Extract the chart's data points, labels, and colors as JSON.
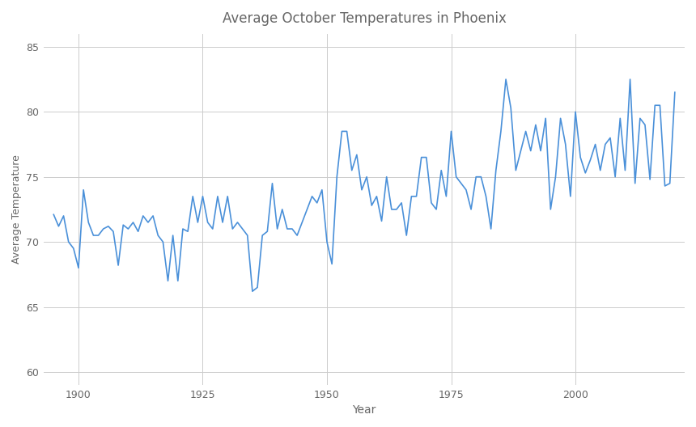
{
  "title": "Average October Temperatures in Phoenix",
  "xlabel": "Year",
  "ylabel": "Average Temperature",
  "line_color": "#4a90d9",
  "bg_color": "#ffffff",
  "grid_color": "#cccccc",
  "ylim": [
    59,
    86
  ],
  "yticks": [
    60,
    65,
    70,
    75,
    80,
    85
  ],
  "xlim": [
    1893,
    2022
  ],
  "xtick_interval": 25,
  "years": [
    1895,
    1896,
    1897,
    1898,
    1899,
    1900,
    1901,
    1902,
    1903,
    1904,
    1905,
    1906,
    1907,
    1908,
    1909,
    1910,
    1911,
    1912,
    1913,
    1914,
    1915,
    1916,
    1917,
    1918,
    1919,
    1920,
    1921,
    1922,
    1923,
    1924,
    1925,
    1926,
    1927,
    1928,
    1929,
    1930,
    1931,
    1932,
    1933,
    1934,
    1935,
    1936,
    1937,
    1938,
    1939,
    1940,
    1941,
    1942,
    1943,
    1944,
    1945,
    1946,
    1947,
    1948,
    1949,
    1950,
    1951,
    1952,
    1953,
    1954,
    1955,
    1956,
    1957,
    1958,
    1959,
    1960,
    1961,
    1962,
    1963,
    1964,
    1965,
    1966,
    1967,
    1968,
    1969,
    1970,
    1971,
    1972,
    1973,
    1974,
    1975,
    1976,
    1977,
    1978,
    1979,
    1980,
    1981,
    1982,
    1983,
    1984,
    1985,
    1986,
    1987,
    1988,
    1989,
    1990,
    1991,
    1992,
    1993,
    1994,
    1995,
    1996,
    1997,
    1998,
    1999,
    2000,
    2001,
    2002,
    2003,
    2004,
    2005,
    2006,
    2007,
    2008,
    2009,
    2010,
    2011,
    2012,
    2013,
    2014,
    2015,
    2016,
    2017,
    2018,
    2019,
    2020
  ],
  "temps": [
    72.1,
    71.2,
    72.0,
    70.0,
    69.5,
    68.0,
    74.0,
    71.5,
    70.5,
    70.5,
    71.0,
    71.2,
    70.8,
    68.2,
    71.3,
    71.0,
    71.5,
    70.8,
    72.0,
    71.5,
    72.0,
    70.5,
    70.0,
    67.0,
    70.5,
    67.0,
    71.0,
    70.8,
    73.5,
    71.5,
    73.5,
    71.5,
    71.0,
    73.5,
    71.5,
    73.5,
    71.0,
    71.5,
    71.0,
    70.5,
    66.2,
    66.5,
    70.5,
    70.8,
    74.5,
    71.0,
    72.5,
    71.0,
    71.0,
    70.5,
    71.5,
    72.5,
    73.5,
    73.0,
    74.0,
    70.0,
    68.3,
    75.0,
    78.5,
    78.5,
    75.5,
    76.7,
    74.0,
    75.0,
    72.8,
    73.5,
    71.6,
    75.0,
    72.5,
    72.5,
    73.0,
    70.5,
    73.5,
    73.5,
    76.5,
    76.5,
    73.0,
    72.5,
    75.5,
    73.5,
    78.5,
    75.0,
    74.5,
    74.0,
    72.5,
    75.0,
    75.0,
    73.5,
    71.0,
    75.5,
    78.5,
    82.5,
    80.3,
    75.5,
    77.0,
    78.5,
    77.0,
    79.0,
    77.0,
    79.5,
    72.5,
    75.0,
    79.5,
    77.5,
    73.5,
    80.0,
    76.5,
    75.3,
    76.3,
    77.5,
    75.5,
    77.5,
    78.0,
    75.0,
    79.5,
    75.5,
    82.5,
    74.5,
    79.5,
    79.0,
    74.8,
    80.5,
    80.5,
    74.3,
    74.5,
    81.5
  ]
}
